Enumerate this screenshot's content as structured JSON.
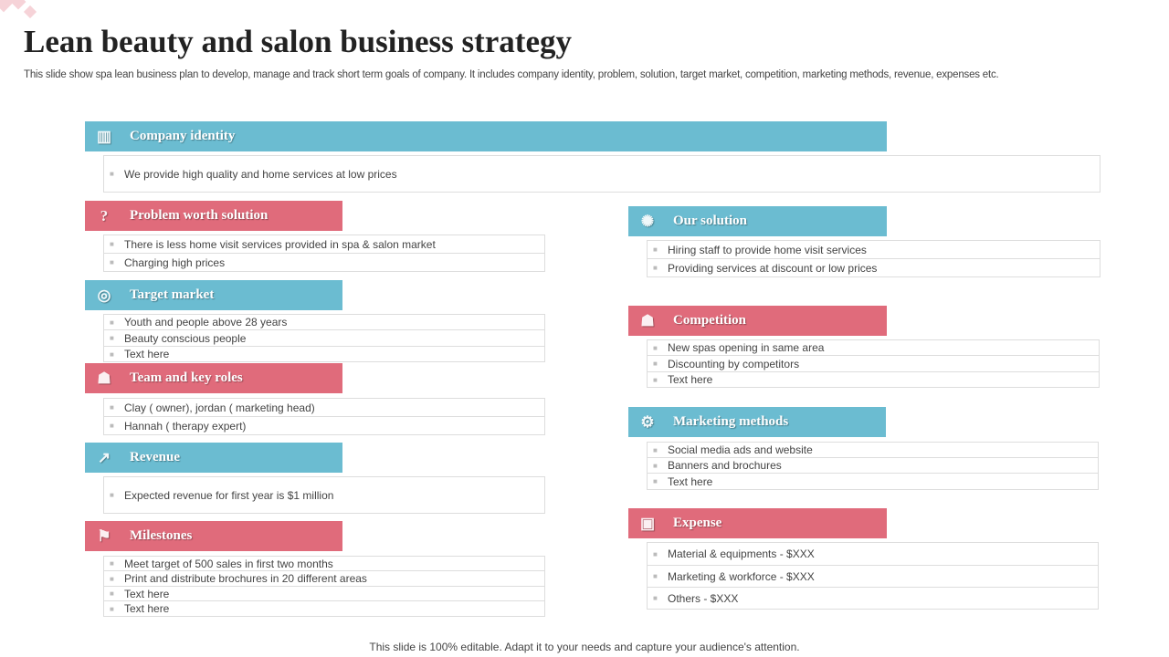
{
  "title": "Lean beauty and salon business strategy",
  "subtitle": "This slide show spa lean business plan to develop, manage and track short term goals of company. It includes company identity, problem, solution, target market, competition, marketing methods, revenue, expenses etc.",
  "colors": {
    "blue": "#6bbcd1",
    "pink": "#e06b7b"
  },
  "sections": [
    {
      "label": "Company identity",
      "icon": "building-icon",
      "color": "blue",
      "items": [
        "We provide high quality and home services at low prices"
      ]
    },
    {
      "label": "Problem worth solution",
      "icon": "lightbulb-question-icon",
      "color": "pink",
      "items": [
        "There is less home visit services provided in spa & salon market",
        "Charging high prices"
      ]
    },
    {
      "label": "Target market",
      "icon": "target-icon",
      "color": "blue",
      "items": [
        "Youth and people above 28 years",
        "Beauty conscious people",
        "Text here"
      ]
    },
    {
      "label": "Team and key roles",
      "icon": "team-icon",
      "color": "pink",
      "items": [
        "Clay ( owner), jordan ( marketing head)",
        "Hannah ( therapy expert)"
      ]
    },
    {
      "label": "Revenue",
      "icon": "growth-chart-icon",
      "color": "blue",
      "items": [
        "Expected revenue for first year is $1 million"
      ]
    },
    {
      "label": "Milestones",
      "icon": "mountain-flag-icon",
      "color": "pink",
      "items": [
        "Meet target of 500 sales in first two months",
        "Print and distribute brochures in 20 different areas",
        "Text here",
        "Text here"
      ]
    },
    {
      "label": "Our solution",
      "icon": "idea-bulb-icon",
      "color": "blue",
      "items": [
        "Hiring staff to provide home visit services",
        "Providing services at discount or low prices"
      ]
    },
    {
      "label": "Competition",
      "icon": "competitors-icon",
      "color": "pink",
      "items": [
        "New spas opening in same area",
        "Discounting by competitors",
        "Text here"
      ]
    },
    {
      "label": "Marketing methods",
      "icon": "network-gear-icon",
      "color": "blue",
      "items": [
        "Social media ads and website",
        "Banners and brochures",
        "Text here"
      ]
    },
    {
      "label": "Expense",
      "icon": "briefcase-icon",
      "color": "pink",
      "items": [
        "Material & equipments - $XXX",
        "Marketing & workforce - $XXX",
        "Others - $XXX"
      ]
    }
  ],
  "footer": "This slide is 100% editable. Adapt it to your needs and capture your audience's attention."
}
